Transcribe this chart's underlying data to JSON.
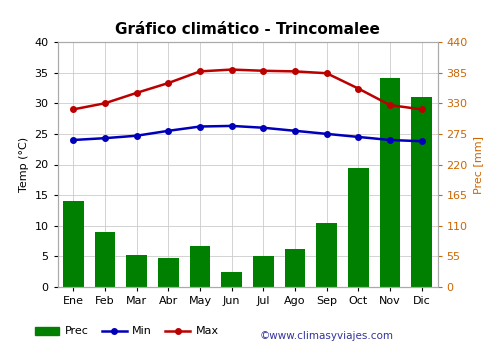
{
  "title": "Gráfico climático - Trincomalee",
  "months": [
    "Ene",
    "Feb",
    "Mar",
    "Abr",
    "May",
    "Jun",
    "Jul",
    "Ago",
    "Sep",
    "Oct",
    "Nov",
    "Dic"
  ],
  "prec": [
    14.0,
    9.0,
    5.2,
    4.7,
    6.7,
    2.5,
    5.0,
    6.2,
    10.5,
    19.5,
    34.2,
    31.0
  ],
  "temp_min": [
    24.0,
    24.3,
    24.7,
    25.5,
    26.2,
    26.3,
    26.0,
    25.5,
    25.0,
    24.5,
    24.0,
    23.8
  ],
  "temp_max": [
    29.0,
    30.0,
    31.7,
    33.3,
    35.2,
    35.5,
    35.3,
    35.2,
    34.9,
    32.4,
    29.7,
    29.0
  ],
  "bar_color": "#008000",
  "min_color": "#0000bb",
  "max_color": "#bb0000",
  "left_ylim": [
    0,
    40
  ],
  "left_yticks": [
    0,
    5,
    10,
    15,
    20,
    25,
    30,
    35,
    40
  ],
  "right_ylim": [
    0,
    440
  ],
  "right_yticks": [
    0,
    55,
    110,
    165,
    220,
    275,
    330,
    385,
    440
  ],
  "ylabel_left": "Temp (°C)",
  "ylabel_right": "Prec [mm]",
  "background_color": "#ffffff",
  "grid_color": "#cccccc",
  "watermark": "©www.climasyviajes.com",
  "title_fontsize": 11,
  "label_fontsize": 8,
  "tick_fontsize": 8,
  "right_tick_color": "#cc6600",
  "right_label_color": "#cc6600"
}
